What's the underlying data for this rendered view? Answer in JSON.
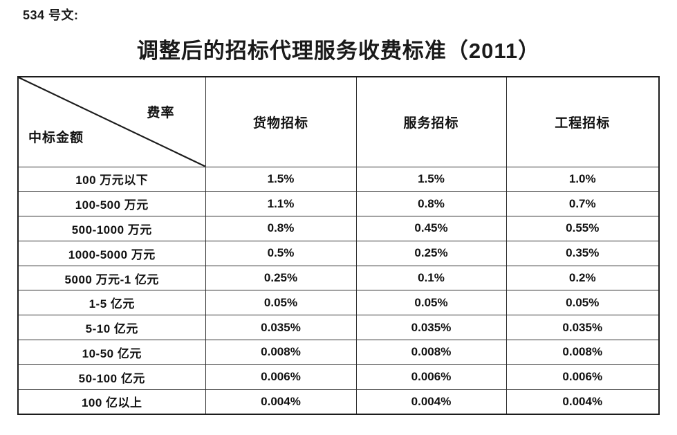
{
  "page": {
    "doc_label": "534 号文:",
    "title": "调整后的招标代理服务收费标准（2011）"
  },
  "table": {
    "corner": {
      "top_right": "费率",
      "bottom_left": "中标金额"
    },
    "columns": [
      "货物招标",
      "服务招标",
      "工程招标"
    ],
    "rows": [
      {
        "amount": "100 万元以下",
        "values": [
          "1.5%",
          "1.5%",
          "1.0%"
        ]
      },
      {
        "amount": "100-500 万元",
        "values": [
          "1.1%",
          "0.8%",
          "0.7%"
        ]
      },
      {
        "amount": "500-1000 万元",
        "values": [
          "0.8%",
          "0.45%",
          "0.55%"
        ]
      },
      {
        "amount": "1000-5000 万元",
        "values": [
          "0.5%",
          "0.25%",
          "0.35%"
        ]
      },
      {
        "amount": "5000 万元-1 亿元",
        "values": [
          "0.25%",
          "0.1%",
          "0.2%"
        ]
      },
      {
        "amount": "1-5 亿元",
        "values": [
          "0.05%",
          "0.05%",
          "0.05%"
        ]
      },
      {
        "amount": "5-10 亿元",
        "values": [
          "0.035%",
          "0.035%",
          "0.035%"
        ]
      },
      {
        "amount": "10-50 亿元",
        "values": [
          "0.008%",
          "0.008%",
          "0.008%"
        ]
      },
      {
        "amount": "50-100 亿元",
        "values": [
          "0.006%",
          "0.006%",
          "0.006%"
        ]
      },
      {
        "amount": "100 亿以上",
        "values": [
          "0.004%",
          "0.004%",
          "0.004%"
        ]
      }
    ]
  },
  "colors": {
    "background": "#ffffff",
    "text": "#111111",
    "border_outer": "#1c1c1c",
    "border_inner": "#2e2e2e"
  }
}
